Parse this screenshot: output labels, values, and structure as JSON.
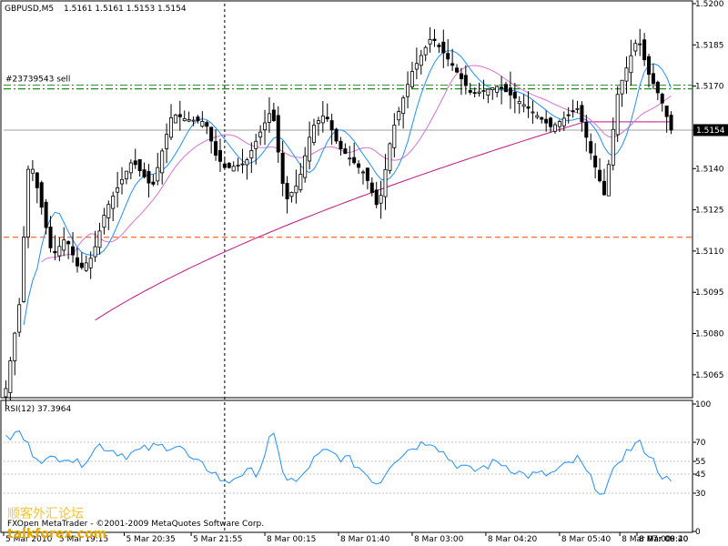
{
  "header": {
    "symbol_label": "GBPUSD,M5",
    "ohlc_label": "1.5161 1.5161 1.5153 1.5154"
  },
  "order_line_label": "#23739543 sell",
  "current_price_label": "1.5154",
  "indicator": {
    "label": "RSI(12) 37.3964",
    "levels": [
      "100",
      "70",
      "55",
      "45",
      "30",
      "0"
    ]
  },
  "watermark": {
    "site": "talkforex.com",
    "chinese": "顺客外汇论坛",
    "copyright": "FXOpen MetaTrader - ©2001-2009 MetaQuotes Software Corp."
  },
  "colors": {
    "background": "#ffffff",
    "candle": "#000000",
    "ma_fast": "#1e90ff",
    "ma_mid": "#c71585",
    "ma_slow": "#c71585",
    "order_line": "#228b22",
    "stop_line": "#ff4500",
    "rsi_line": "#1e90ff",
    "price_box": "#000000"
  },
  "chart_data": [
    {
      "type": "candlestick",
      "title": "GBPUSD,M5",
      "ylim": [
        1.5057,
        1.52
      ],
      "price_ticks": [
        "1.5200",
        "1.5185",
        "1.5170",
        "1.5154",
        "1.5140",
        "1.5125",
        "1.5110",
        "1.5095",
        "1.5080",
        "1.5065"
      ],
      "time_labels": [
        "5 Mar 2010",
        "5 Mar 19:15",
        "5 Mar 20:35",
        "5 Mar 21:55",
        "8 Mar 00:15",
        "8 Mar 01:40",
        "8 Mar 03:00",
        "8 Mar 04:20",
        "8 Mar 05:40",
        "8 Mar 07:00",
        "8 Mar 08:20",
        "8 Mar 09:40"
      ],
      "time_label_positions": [
        0,
        0.08,
        0.18,
        0.28,
        0.39,
        0.5,
        0.61,
        0.72,
        0.83,
        0.92,
        0.97,
        1.0
      ],
      "order_line": 1.5169,
      "stop_line": 1.5115,
      "current_price": 1.5154,
      "cursor_time_fraction": 0.33,
      "close_keypoints": [
        [
          0,
          1.506
        ],
        [
          0.02,
          1.509
        ],
        [
          0.035,
          1.5145
        ],
        [
          0.05,
          1.513
        ],
        [
          0.07,
          1.5108
        ],
        [
          0.09,
          1.5115
        ],
        [
          0.11,
          1.5103
        ],
        [
          0.13,
          1.5108
        ],
        [
          0.15,
          1.5125
        ],
        [
          0.19,
          1.5143
        ],
        [
          0.22,
          1.5133
        ],
        [
          0.25,
          1.516
        ],
        [
          0.27,
          1.5158
        ],
        [
          0.3,
          1.5157
        ],
        [
          0.315,
          1.5145
        ],
        [
          0.33,
          1.514
        ],
        [
          0.36,
          1.5142
        ],
        [
          0.38,
          1.5152
        ],
        [
          0.4,
          1.5162
        ],
        [
          0.42,
          1.5128
        ],
        [
          0.44,
          1.5135
        ],
        [
          0.46,
          1.5155
        ],
        [
          0.48,
          1.516
        ],
        [
          0.5,
          1.5148
        ],
        [
          0.54,
          1.5138
        ],
        [
          0.56,
          1.5125
        ],
        [
          0.58,
          1.5153
        ],
        [
          0.61,
          1.5175
        ],
        [
          0.64,
          1.5188
        ],
        [
          0.67,
          1.5178
        ],
        [
          0.7,
          1.5167
        ],
        [
          0.74,
          1.517
        ],
        [
          0.78,
          1.5163
        ],
        [
          0.82,
          1.5155
        ],
        [
          0.86,
          1.5162
        ],
        [
          0.88,
          1.5145
        ],
        [
          0.9,
          1.513
        ],
        [
          0.92,
          1.5168
        ],
        [
          0.95,
          1.5188
        ],
        [
          0.965,
          1.5175
        ],
        [
          0.985,
          1.5165
        ],
        [
          1.0,
          1.5154
        ]
      ]
    },
    {
      "type": "line",
      "title": "RSI(12) 37.3964",
      "ylim": [
        0,
        100
      ],
      "ticks": [
        100,
        70,
        55,
        45,
        30
      ],
      "keypoints": [
        [
          0,
          72
        ],
        [
          0.02,
          78
        ],
        [
          0.04,
          62
        ],
        [
          0.06,
          55
        ],
        [
          0.09,
          60
        ],
        [
          0.11,
          52
        ],
        [
          0.14,
          68
        ],
        [
          0.18,
          60
        ],
        [
          0.22,
          66
        ],
        [
          0.26,
          68
        ],
        [
          0.28,
          55
        ],
        [
          0.31,
          48
        ],
        [
          0.33,
          37
        ],
        [
          0.35,
          45
        ],
        [
          0.38,
          47
        ],
        [
          0.4,
          78
        ],
        [
          0.42,
          42
        ],
        [
          0.44,
          38
        ],
        [
          0.46,
          55
        ],
        [
          0.48,
          63
        ],
        [
          0.52,
          55
        ],
        [
          0.56,
          37
        ],
        [
          0.58,
          55
        ],
        [
          0.61,
          66
        ],
        [
          0.64,
          72
        ],
        [
          0.67,
          55
        ],
        [
          0.7,
          47
        ],
        [
          0.74,
          55
        ],
        [
          0.78,
          44
        ],
        [
          0.82,
          45
        ],
        [
          0.86,
          57
        ],
        [
          0.88,
          40
        ],
        [
          0.9,
          28
        ],
        [
          0.92,
          56
        ],
        [
          0.95,
          70
        ],
        [
          0.965,
          62
        ],
        [
          0.985,
          45
        ],
        [
          1.0,
          37
        ]
      ]
    }
  ]
}
